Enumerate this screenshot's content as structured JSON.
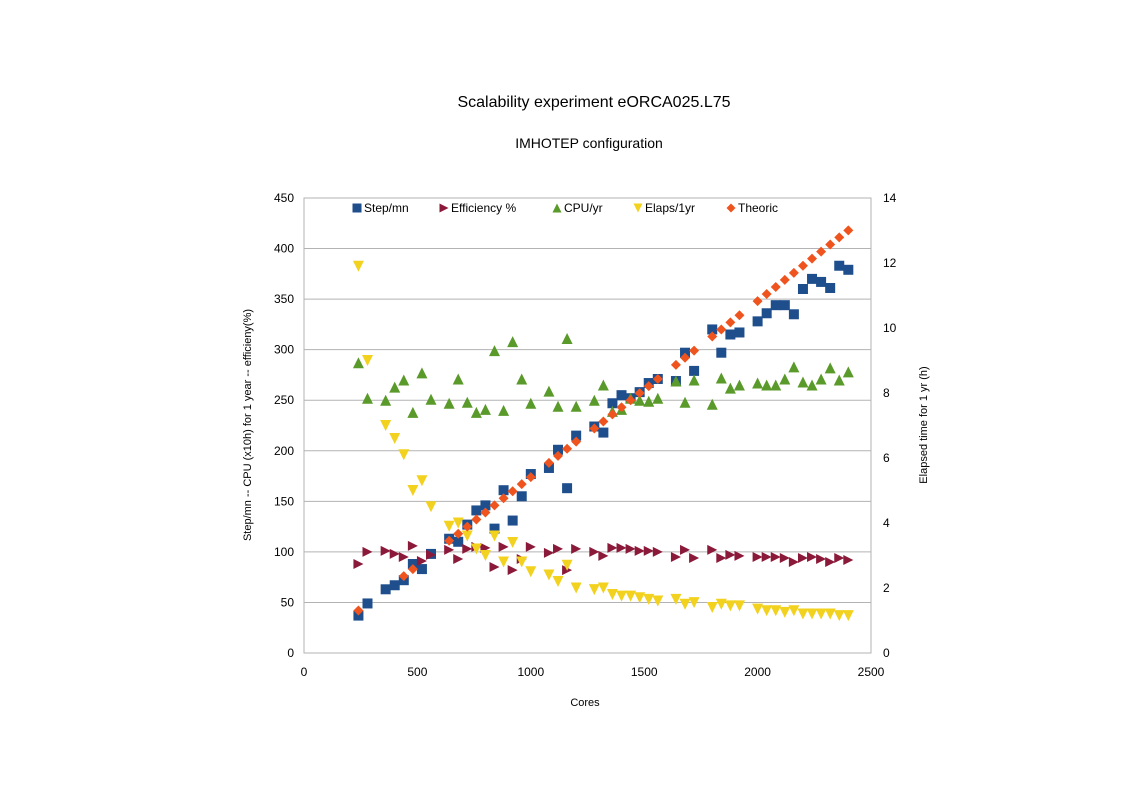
{
  "chart_data": {
    "type": "scatter",
    "title": "Scalability experiment eORCA025.L75",
    "subtitle": "IMHOTEP configuration",
    "xlabel": "Cores",
    "ylabel": "Step/mn -- CPU (x10h) for 1 year -- efficieny(%)",
    "y2label": "Elapsed time for 1 yr (h)",
    "xlim": [
      0,
      2500
    ],
    "ylim": [
      0,
      450
    ],
    "y2lim": [
      0,
      14
    ],
    "xticks": [
      "0",
      "500",
      "1000",
      "1500",
      "2000",
      "2500"
    ],
    "yticks": [
      "0",
      "50",
      "100",
      "150",
      "200",
      "250",
      "300",
      "350",
      "400",
      "450"
    ],
    "y2ticks": [
      "0",
      "2",
      "4",
      "6",
      "8",
      "10",
      "12",
      "14"
    ],
    "grid": true,
    "legend_position": "top",
    "series": [
      {
        "name": "Step/mn",
        "marker": "square",
        "color": "#1f4e8c",
        "axis": "left",
        "x": [
          240,
          280,
          360,
          400,
          440,
          480,
          520,
          560,
          640,
          680,
          720,
          760,
          800,
          840,
          880,
          920,
          960,
          1000,
          1080,
          1120,
          1160,
          1200,
          1280,
          1320,
          1360,
          1400,
          1440,
          1480,
          1520,
          1560,
          1640,
          1680,
          1720,
          1800,
          1840,
          1880,
          1920,
          2000,
          2040,
          2080,
          2120,
          2160,
          2200,
          2240,
          2280,
          2320,
          2360,
          2400
        ],
        "y": [
          37,
          49,
          63,
          67,
          72,
          88,
          83,
          98,
          113,
          110,
          127,
          141,
          146,
          123,
          161,
          131,
          155,
          177,
          183,
          201,
          163,
          215,
          224,
          218,
          247,
          255,
          252,
          258,
          267,
          271,
          269,
          297,
          279,
          320,
          297,
          315,
          317,
          328,
          336,
          344,
          344,
          335,
          360,
          370,
          367,
          361,
          383,
          379
        ]
      },
      {
        "name": "Efficiency %",
        "marker": "triangle-right",
        "color": "#8b1a3a",
        "axis": "left",
        "x": [
          240,
          280,
          360,
          400,
          440,
          480,
          520,
          560,
          640,
          680,
          720,
          760,
          800,
          840,
          880,
          920,
          960,
          1000,
          1080,
          1120,
          1160,
          1200,
          1280,
          1320,
          1360,
          1400,
          1440,
          1480,
          1520,
          1560,
          1640,
          1680,
          1720,
          1800,
          1840,
          1880,
          1920,
          2000,
          2040,
          2080,
          2120,
          2160,
          2200,
          2240,
          2280,
          2320,
          2360,
          2400
        ],
        "y": [
          88,
          100,
          101,
          98,
          95,
          106,
          91,
          97,
          102,
          93,
          103,
          105,
          104,
          85,
          105,
          82,
          93,
          105,
          99,
          103,
          82,
          103,
          100,
          96,
          104,
          104,
          103,
          101,
          101,
          100,
          95,
          102,
          94,
          102,
          94,
          97,
          96,
          95,
          95,
          95,
          94,
          90,
          94,
          95,
          93,
          90,
          94,
          92
        ]
      },
      {
        "name": "CPU/yr",
        "marker": "triangle-up",
        "color": "#5a9a2a",
        "axis": "left",
        "x": [
          240,
          280,
          360,
          400,
          440,
          480,
          520,
          560,
          640,
          680,
          720,
          760,
          800,
          840,
          880,
          920,
          960,
          1000,
          1080,
          1120,
          1160,
          1200,
          1280,
          1320,
          1360,
          1400,
          1440,
          1480,
          1520,
          1560,
          1640,
          1680,
          1720,
          1800,
          1840,
          1880,
          1920,
          2000,
          2040,
          2080,
          2120,
          2160,
          2200,
          2240,
          2280,
          2320,
          2360,
          2400
        ],
        "y": [
          287,
          252,
          250,
          263,
          270,
          238,
          277,
          251,
          247,
          271,
          248,
          238,
          241,
          299,
          240,
          308,
          271,
          247,
          259,
          244,
          311,
          244,
          250,
          265,
          239,
          241,
          252,
          250,
          249,
          252,
          269,
          248,
          270,
          246,
          272,
          262,
          265,
          267,
          265,
          265,
          271,
          283,
          268,
          265,
          271,
          282,
          270,
          278
        ]
      },
      {
        "name": "Elaps/1yr",
        "marker": "triangle-down",
        "color": "#f2d21e",
        "axis": "right",
        "x": [
          240,
          280,
          360,
          400,
          440,
          480,
          520,
          560,
          640,
          680,
          720,
          760,
          800,
          840,
          880,
          920,
          960,
          1000,
          1080,
          1120,
          1160,
          1200,
          1280,
          1320,
          1360,
          1400,
          1440,
          1480,
          1520,
          1560,
          1640,
          1680,
          1720,
          1800,
          1840,
          1880,
          1920,
          2000,
          2040,
          2080,
          2120,
          2160,
          2200,
          2240,
          2280,
          2320,
          2360,
          2400
        ],
        "y": [
          11.9,
          9.0,
          7.0,
          6.6,
          6.1,
          5.0,
          5.3,
          4.5,
          3.9,
          4.0,
          3.6,
          3.2,
          3.0,
          3.6,
          2.8,
          3.4,
          2.8,
          2.5,
          2.4,
          2.2,
          2.7,
          2.0,
          1.95,
          2.0,
          1.8,
          1.75,
          1.75,
          1.7,
          1.65,
          1.6,
          1.65,
          1.5,
          1.55,
          1.4,
          1.5,
          1.45,
          1.45,
          1.35,
          1.3,
          1.3,
          1.25,
          1.3,
          1.2,
          1.2,
          1.2,
          1.2,
          1.15,
          1.15
        ]
      },
      {
        "name": "Theoric",
        "marker": "diamond",
        "color": "#f0541e",
        "axis": "left",
        "x": [
          240,
          440,
          480,
          640,
          680,
          720,
          760,
          800,
          840,
          880,
          920,
          960,
          1000,
          1080,
          1120,
          1160,
          1200,
          1280,
          1320,
          1360,
          1400,
          1440,
          1480,
          1520,
          1560,
          1640,
          1680,
          1720,
          1800,
          1840,
          1880,
          1920,
          2000,
          2040,
          2080,
          2120,
          2160,
          2200,
          2240,
          2280,
          2320,
          2360,
          2400
        ],
        "y": [
          42,
          76,
          83,
          111,
          118,
          125,
          132,
          139,
          146,
          153,
          160,
          167,
          174,
          188,
          195,
          202,
          209,
          222,
          229,
          236,
          243,
          250,
          257,
          264,
          271,
          285,
          292,
          299,
          313,
          320,
          327,
          334,
          348,
          355,
          362,
          369,
          376,
          383,
          390,
          397,
          404,
          411,
          418
        ]
      }
    ]
  }
}
